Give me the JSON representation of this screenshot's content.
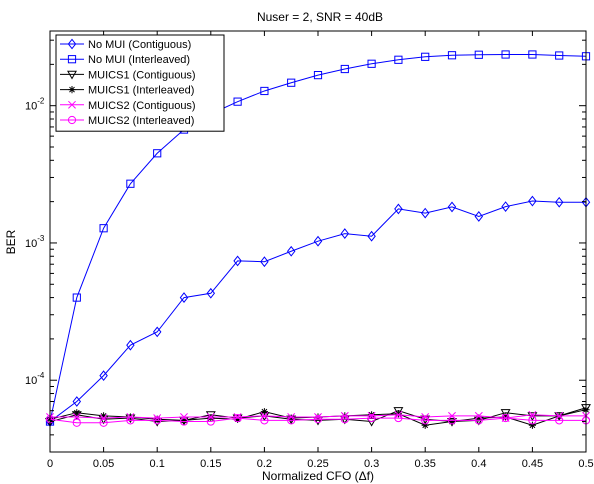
{
  "chart_data": {
    "type": "line",
    "title": "Nuser = 2, SNR = 40dB",
    "xlabel": "Normalized CFO (Δf)",
    "ylabel": "BER",
    "xlim": [
      0,
      0.5
    ],
    "ylim": [
      3e-05,
      0.035
    ],
    "yscale": "log",
    "grid": false,
    "legend_position": "top-left",
    "x_ticks": [
      0,
      0.05,
      0.1,
      0.15,
      0.2,
      0.25,
      0.3,
      0.35,
      0.4,
      0.45,
      0.5
    ],
    "x_tick_labels": [
      "0",
      "0.05",
      "0.1",
      "0.15",
      "0.2",
      "0.25",
      "0.3",
      "0.35",
      "0.4",
      "0.45",
      "0.5"
    ],
    "y_ticks": [
      0.0001,
      0.001,
      0.01
    ],
    "y_tick_labels": [
      {
        "base": "10",
        "exp": "-4"
      },
      {
        "base": "10",
        "exp": "-3"
      },
      {
        "base": "10",
        "exp": "-2"
      }
    ],
    "x": [
      0,
      0.025,
      0.05,
      0.075,
      0.1,
      0.125,
      0.15,
      0.175,
      0.2,
      0.225,
      0.25,
      0.275,
      0.3,
      0.325,
      0.35,
      0.375,
      0.4,
      0.425,
      0.45,
      0.475,
      0.5
    ],
    "series": [
      {
        "name": "No MUI (Contiguous)",
        "color": "#0000ff",
        "marker": "diamond",
        "values": [
          5e-05,
          7e-05,
          0.000108,
          0.00018,
          0.000225,
          0.0004,
          0.00043,
          0.00074,
          0.00073,
          0.00087,
          0.00103,
          0.00117,
          0.00112,
          0.00177,
          0.00165,
          0.00183,
          0.00156,
          0.00184,
          0.00202,
          0.00198,
          0.00198
        ]
      },
      {
        "name": "No MUI (Interleaved)",
        "color": "#0000ff",
        "marker": "square",
        "values": [
          5e-05,
          0.0004,
          0.00128,
          0.0027,
          0.0045,
          0.0067,
          0.0087,
          0.0107,
          0.0128,
          0.0147,
          0.0167,
          0.0185,
          0.0202,
          0.0216,
          0.0227,
          0.0233,
          0.0235,
          0.0236,
          0.0236,
          0.0232,
          0.0229
        ]
      },
      {
        "name": "MUICS1 (Contiguous)",
        "color": "#000000",
        "marker": "triangle-down",
        "values": [
          5e-05,
          5.6e-05,
          5.2e-05,
          5.3e-05,
          5e-05,
          5.1e-05,
          5.6e-05,
          5.3e-05,
          5.5e-05,
          5.2e-05,
          5.1e-05,
          5.2e-05,
          5e-05,
          6e-05,
          5.2e-05,
          5e-05,
          5.1e-05,
          5.8e-05,
          5.5e-05,
          5.5e-05,
          6.3e-05
        ]
      },
      {
        "name": "MUICS1 (Interleaved)",
        "color": "#000000",
        "marker": "star",
        "values": [
          5.2e-05,
          5.8e-05,
          5.5e-05,
          5.4e-05,
          5.2e-05,
          5.1e-05,
          5.3e-05,
          5.2e-05,
          5.9e-05,
          5.3e-05,
          5.4e-05,
          5.5e-05,
          5.6e-05,
          5.7e-05,
          4.7e-05,
          5e-05,
          5.3e-05,
          5.4e-05,
          4.7e-05,
          5.5e-05,
          6.1e-05
        ]
      },
      {
        "name": "MUICS2 (Contiguous)",
        "color": "#ff00ff",
        "marker": "x",
        "values": [
          5.4e-05,
          5.4e-05,
          5.3e-05,
          5.4e-05,
          5.3e-05,
          5.4e-05,
          5.4e-05,
          5.4e-05,
          5.5e-05,
          5.4e-05,
          5.4e-05,
          5.5e-05,
          5.5e-05,
          5.6e-05,
          5.4e-05,
          5.5e-05,
          5.5e-05,
          5.3e-05,
          5.6e-05,
          5.5e-05,
          5.5e-05
        ]
      },
      {
        "name": "MUICS2 (Interleaved)",
        "color": "#ff00ff",
        "marker": "circle",
        "values": [
          5.2e-05,
          4.9e-05,
          4.9e-05,
          5.1e-05,
          5.1e-05,
          5e-05,
          5e-05,
          5.3e-05,
          5.1e-05,
          5.1e-05,
          5.2e-05,
          5.2e-05,
          5.3e-05,
          5.3e-05,
          5.1e-05,
          5.1e-05,
          5.1e-05,
          5.3e-05,
          5.1e-05,
          5.1e-05,
          5.1e-05
        ]
      }
    ]
  }
}
